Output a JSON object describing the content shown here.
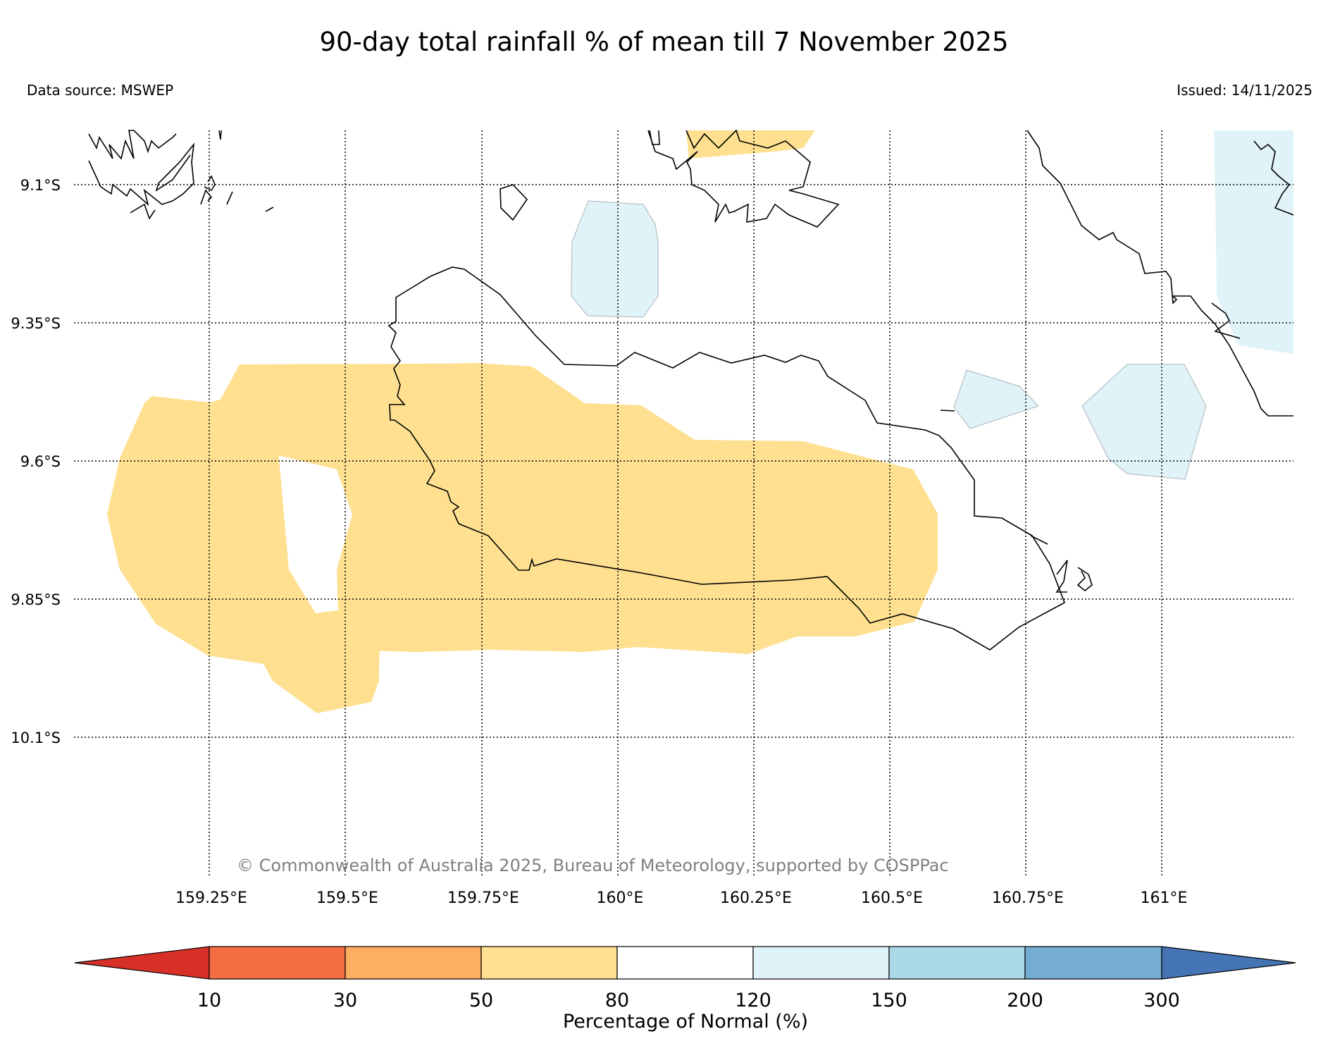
{
  "title": "90-day total rainfall % of mean till 7 November 2025",
  "data_source": "Data source: MSWEP",
  "issued": "Issued: 14/11/2025",
  "credit": "© Commonwealth of Australia 2025, Bureau of Meteorology, supported by COSPPac",
  "lat_labels": [
    "9.1°S",
    "9.35°S",
    "9.6°S",
    "9.85°S",
    "10.1°S"
  ],
  "lon_labels": [
    "159.25°E",
    "159.5°E",
    "159.75°E",
    "160°E",
    "160.25°E",
    "160.5°E",
    "160.75°E",
    "161°E"
  ],
  "colorbar": {
    "label": "Percentage of Normal (%)",
    "ticks": [
      "10",
      "30",
      "50",
      "80",
      "120",
      "150",
      "200",
      "300"
    ],
    "colors": [
      "#d73027",
      "#f46d43",
      "#fdae61",
      "#fee090",
      "#ffffff",
      "#e0f3f8",
      "#abd9e9",
      "#74add1",
      "#4575b4"
    ]
  },
  "colors": {
    "dry": "#fee090",
    "wet": "#e0f3f8",
    "coast": "#000000",
    "grid": "#000000"
  }
}
